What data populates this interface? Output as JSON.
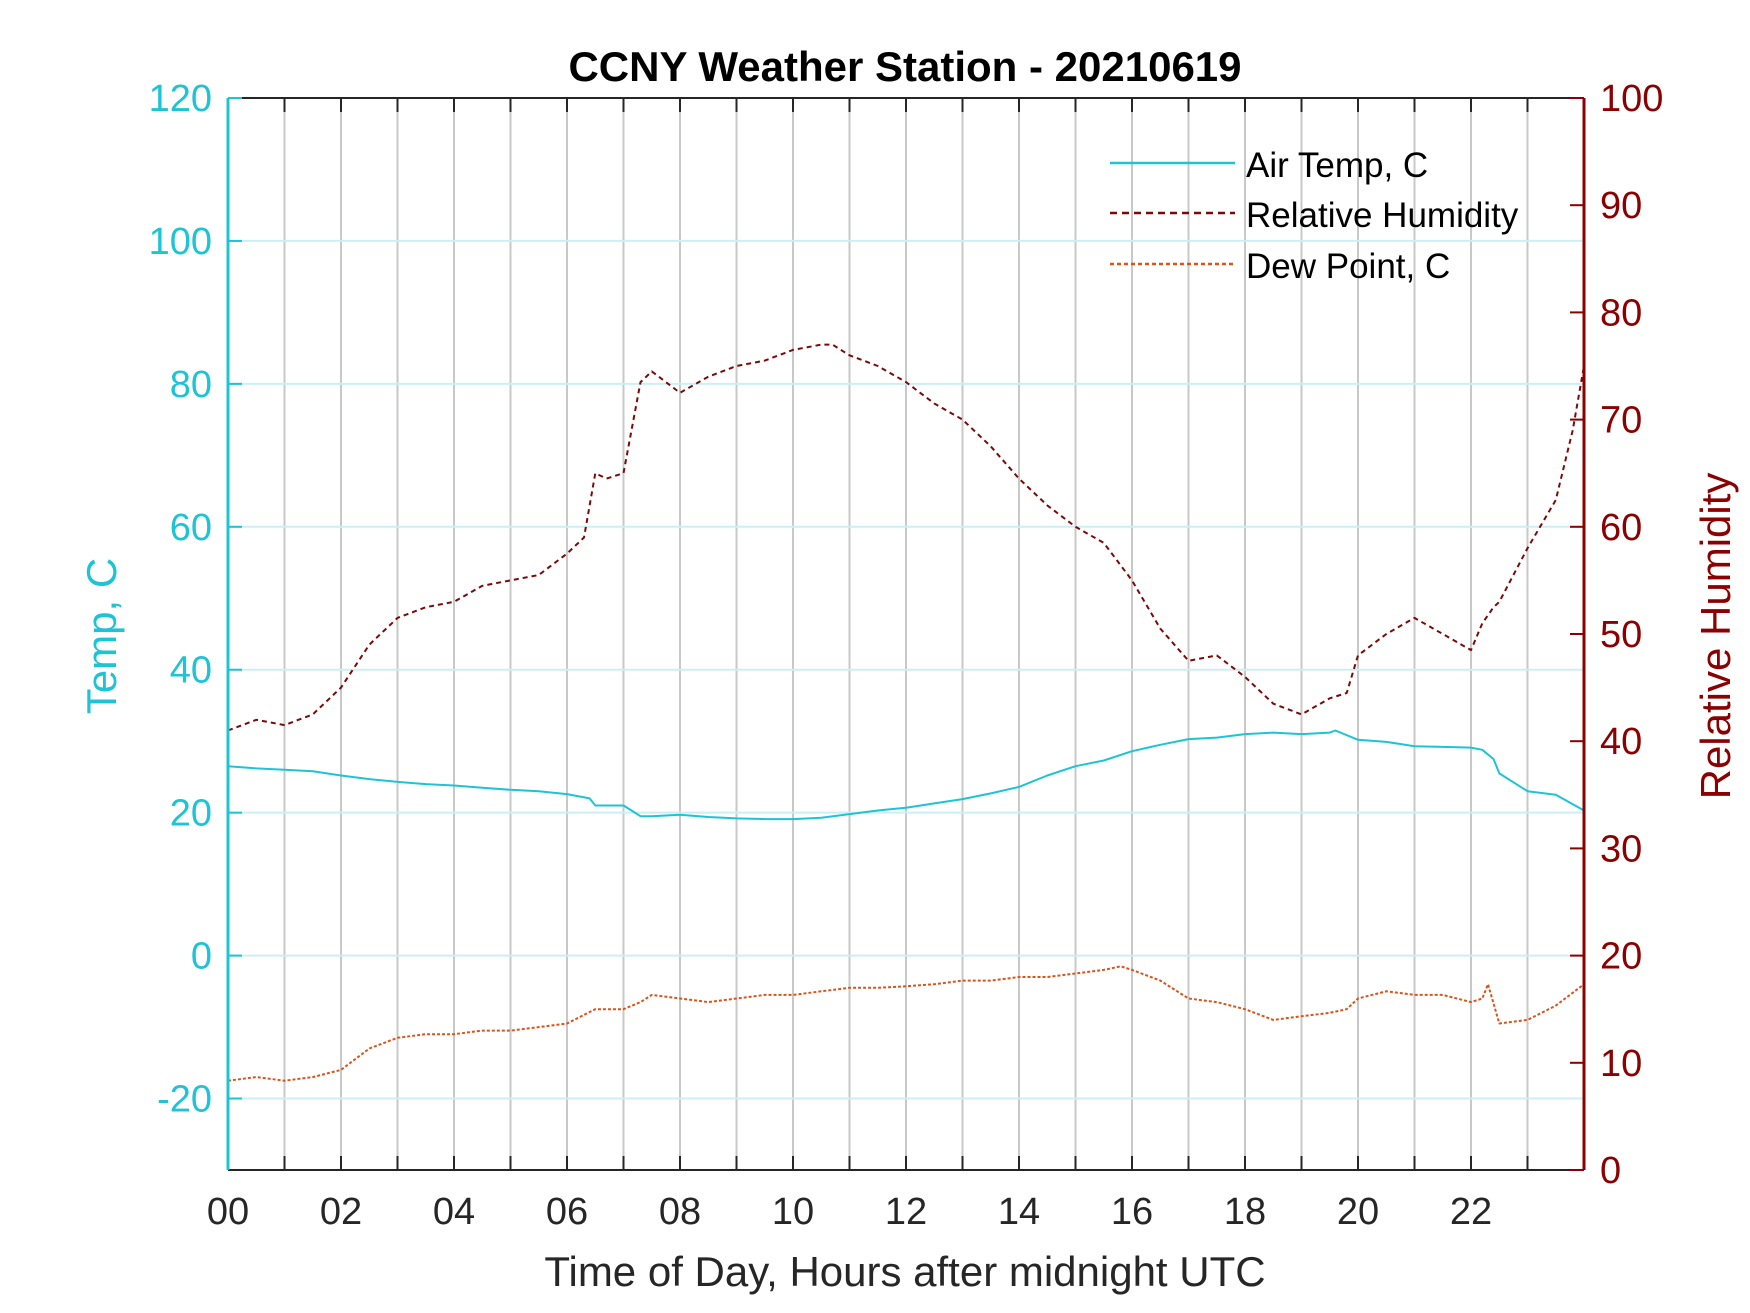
{
  "chart_data": {
    "type": "line",
    "title": "CCNY Weather Station - 20210619",
    "xlabel": "Time of Day, Hours after midnight UTC",
    "ylabel_left": "Temp, C",
    "ylabel_right": "Relative Humidity",
    "xlim": [
      0,
      24
    ],
    "ylim_left": [
      -30,
      120
    ],
    "ylim_right": [
      0,
      100
    ],
    "x_ticks": [
      0,
      2,
      4,
      6,
      8,
      10,
      12,
      14,
      16,
      18,
      20,
      22
    ],
    "x_tick_labels": [
      "00",
      "02",
      "04",
      "06",
      "08",
      "10",
      "12",
      "14",
      "16",
      "18",
      "20",
      "22"
    ],
    "y_ticks_left": [
      -20,
      0,
      20,
      40,
      60,
      80,
      100,
      120
    ],
    "y_tick_labels_left": [
      "-20",
      "0",
      "20",
      "40",
      "60",
      "80",
      "100",
      "120"
    ],
    "y_ticks_right": [
      0,
      10,
      20,
      30,
      40,
      50,
      60,
      70,
      80,
      90,
      100
    ],
    "y_tick_labels_right": [
      "0",
      "10",
      "20",
      "30",
      "40",
      "50",
      "60",
      "70",
      "80",
      "90",
      "100"
    ],
    "grid": true,
    "legend_position": "top-right",
    "colors": {
      "left_axis": "#1cc4d6",
      "right_axis": "#8b0000",
      "air_temp": "#1cc4d6",
      "humidity": "#7a0a0a",
      "dew_point": "#d9541a",
      "grid_vertical": "#c8c8c8",
      "grid_horizontal": "#cdeff4"
    },
    "series": [
      {
        "name": "Air Temp, C",
        "axis": "left",
        "style": "solid",
        "x": [
          0,
          0.5,
          1,
          1.5,
          2,
          2.5,
          3,
          3.5,
          4,
          4.5,
          5,
          5.5,
          6,
          6.4,
          6.5,
          7,
          7.3,
          7.5,
          8,
          8.5,
          9,
          9.5,
          10,
          10.5,
          11,
          11.5,
          12,
          12.5,
          13,
          13.5,
          14,
          14.5,
          15,
          15.5,
          16,
          16.5,
          17,
          17.5,
          18,
          18.5,
          19,
          19.5,
          19.6,
          20,
          20.5,
          21,
          21.5,
          22,
          22.2,
          22.4,
          22.5,
          23,
          23.5,
          24
        ],
        "y": [
          26.5,
          26.2,
          26,
          25.8,
          25.2,
          24.7,
          24.3,
          24,
          23.8,
          23.5,
          23.2,
          23,
          22.6,
          22,
          21,
          21,
          19.5,
          19.5,
          19.7,
          19.4,
          19.2,
          19.1,
          19.1,
          19.3,
          19.8,
          20.3,
          20.7,
          21.3,
          21.9,
          22.7,
          23.6,
          25.2,
          26.5,
          27.3,
          28.6,
          29.5,
          30.3,
          30.5,
          31,
          31.2,
          31,
          31.2,
          31.5,
          30.2,
          29.9,
          29.3,
          29.2,
          29.1,
          28.8,
          27.5,
          25.5,
          23,
          22.5,
          20.3
        ]
      },
      {
        "name": "Relative Humidity",
        "axis": "right",
        "style": "dashed",
        "x": [
          0,
          0.5,
          1,
          1.5,
          2,
          2.5,
          3,
          3.5,
          4,
          4.5,
          5,
          5.5,
          6,
          6.3,
          6.5,
          6.7,
          7,
          7.3,
          7.5,
          8,
          8.5,
          9,
          9.5,
          10,
          10.5,
          10.7,
          11,
          11.5,
          12,
          12.5,
          13,
          13.5,
          14,
          14.5,
          15,
          15.5,
          16,
          16.5,
          17,
          17.5,
          18,
          18.5,
          19,
          19.5,
          19.8,
          20,
          20.5,
          21,
          21.5,
          22,
          22.2,
          22.4,
          22.5,
          23,
          23.5,
          23.8,
          24
        ],
        "y": [
          41,
          42,
          41.5,
          42.5,
          45,
          49,
          51.5,
          52.5,
          53,
          54.5,
          55,
          55.5,
          57.5,
          59,
          65,
          64.5,
          65,
          73.5,
          74.5,
          72.5,
          74,
          75,
          75.5,
          76.5,
          77,
          77,
          76,
          75,
          73.5,
          71.5,
          70,
          67.5,
          64.5,
          62,
          60,
          58.5,
          55,
          50.5,
          47.5,
          48,
          46,
          43.5,
          42.5,
          44,
          44.5,
          48,
          50,
          51.5,
          50,
          48.5,
          51,
          52.5,
          53,
          58,
          62.5,
          69,
          75
        ]
      },
      {
        "name": "Dew Point, C",
        "axis": "left",
        "style": "dashed",
        "x": [
          0,
          0.5,
          1,
          1.5,
          2,
          2.5,
          3,
          3.5,
          4,
          4.5,
          5,
          5.5,
          6,
          6.5,
          7,
          7.3,
          7.5,
          8,
          8.5,
          9,
          9.5,
          10,
          10.5,
          11,
          11.5,
          12,
          12.5,
          13,
          13.5,
          14,
          14.5,
          15,
          15.5,
          15.8,
          16,
          16.5,
          17,
          17.5,
          18,
          18.5,
          19,
          19.5,
          19.8,
          20,
          20.5,
          21,
          21.5,
          22,
          22.2,
          22.3,
          22.5,
          23,
          23.5,
          24
        ],
        "y": [
          -17.5,
          -17,
          -17.5,
          -17,
          -16,
          -13,
          -11.5,
          -11,
          -11,
          -10.5,
          -10.5,
          -10,
          -9.5,
          -7.5,
          -7.5,
          -6.5,
          -5.5,
          -6,
          -6.5,
          -6,
          -5.5,
          -5.5,
          -5,
          -4.5,
          -4.5,
          -4.3,
          -4,
          -3.5,
          -3.5,
          -3,
          -3,
          -2.5,
          -2,
          -1.5,
          -2,
          -3.5,
          -6,
          -6.5,
          -7.5,
          -9,
          -8.5,
          -8,
          -7.5,
          -6,
          -5,
          -5.5,
          -5.5,
          -6.5,
          -6,
          -4,
          -9.5,
          -9,
          -7,
          -4
        ]
      }
    ]
  }
}
